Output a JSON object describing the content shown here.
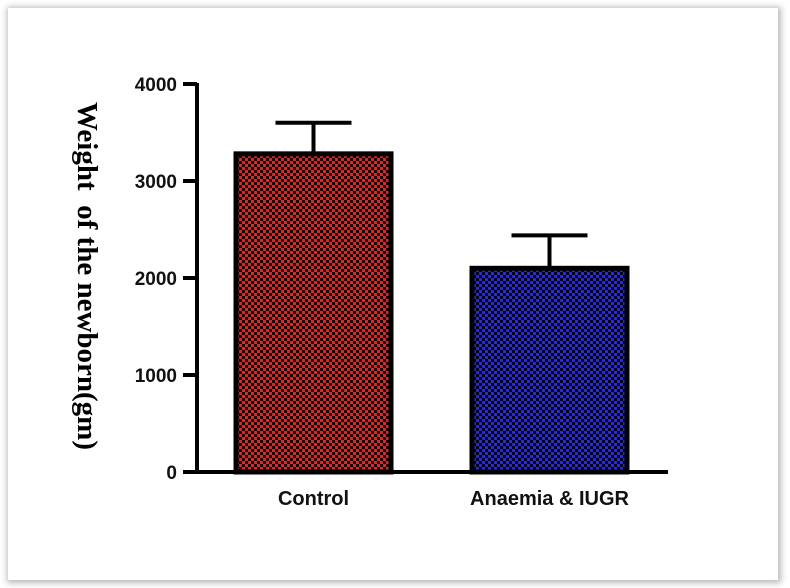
{
  "chart_data": {
    "type": "bar",
    "title": "",
    "xlabel": "",
    "ylabel": "Weight  of the newborn(gm)",
    "categories": [
      "Control",
      "Anaemia & IUGR"
    ],
    "values": [
      3280,
      2100
    ],
    "error_upper": [
      3600,
      2440
    ],
    "ylim": [
      0,
      4000
    ],
    "yticks": [
      "0",
      "1000",
      "2000",
      "3000",
      "4000"
    ],
    "colors": [
      "#d42a2a",
      "#2a2ad4"
    ],
    "pattern": "checkerboard",
    "grid": false,
    "legend": "none"
  }
}
